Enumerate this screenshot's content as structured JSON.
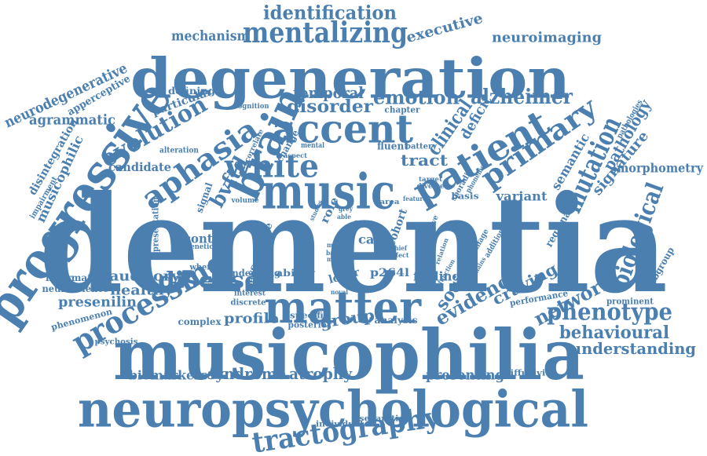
{
  "accent_color": "#4a7fb0",
  "words": [
    {
      "text": "dementia"
    },
    {
      "text": "degeneration"
    },
    {
      "text": "musicophilia"
    },
    {
      "text": "neuropsychological"
    },
    {
      "text": "matter"
    },
    {
      "text": "progressive"
    },
    {
      "text": "music"
    },
    {
      "text": "brain"
    },
    {
      "text": "accent"
    },
    {
      "text": "patient"
    },
    {
      "text": "white"
    },
    {
      "text": "aphasia"
    },
    {
      "text": "mentalizing"
    },
    {
      "text": "evolution"
    },
    {
      "text": "primary"
    },
    {
      "text": "processing"
    },
    {
      "text": "tractography"
    },
    {
      "text": "identification"
    },
    {
      "text": "disease"
    },
    {
      "text": "mutation"
    },
    {
      "text": "biological"
    },
    {
      "text": "phenotype"
    },
    {
      "text": "network"
    },
    {
      "text": "evidence"
    },
    {
      "text": "alzheimer"
    },
    {
      "text": "disorder"
    },
    {
      "text": "emotion"
    },
    {
      "text": "temporal"
    },
    {
      "text": "bvftd"
    },
    {
      "text": "craving"
    },
    {
      "text": "social"
    },
    {
      "text": "clinical"
    },
    {
      "text": "neurodegenerative"
    },
    {
      "text": "agrammatic"
    },
    {
      "text": "mechanism"
    },
    {
      "text": "neuroimaging"
    },
    {
      "text": "executive"
    },
    {
      "text": "syndrome"
    },
    {
      "text": "behavioural"
    },
    {
      "text": "understanding"
    },
    {
      "text": "atrophy"
    },
    {
      "text": "biomarkers"
    },
    {
      "text": "presenting"
    },
    {
      "text": "profile"
    },
    {
      "text": "group"
    },
    {
      "text": "auditory"
    },
    {
      "text": "healthy"
    },
    {
      "text": "presenilin"
    },
    {
      "text": "tract"
    },
    {
      "text": "pathology"
    },
    {
      "text": "signature"
    },
    {
      "text": "deficit"
    },
    {
      "text": "semantic"
    },
    {
      "text": "morphometry"
    },
    {
      "text": "variant"
    },
    {
      "text": "musicophilic"
    },
    {
      "text": "disintegration"
    },
    {
      "text": "apperceptive"
    },
    {
      "text": "particular"
    },
    {
      "text": "defining"
    },
    {
      "text": "candidate"
    },
    {
      "text": "control"
    },
    {
      "text": "neural"
    },
    {
      "text": "case"
    },
    {
      "text": "finding"
    },
    {
      "text": "p264l"
    },
    {
      "text": "lobar"
    },
    {
      "text": "role"
    },
    {
      "text": "cohort"
    },
    {
      "text": "lobe"
    },
    {
      "text": "associative"
    },
    {
      "text": "underlying"
    },
    {
      "text": "ability"
    },
    {
      "text": "information"
    },
    {
      "text": "neuroscience"
    },
    {
      "text": "phenomenon"
    },
    {
      "text": "psychosis"
    },
    {
      "text": "complex"
    },
    {
      "text": "specific"
    },
    {
      "text": "posterior"
    },
    {
      "text": "analysis"
    },
    {
      "text": "regional"
    },
    {
      "text": "subgroup"
    },
    {
      "text": "prominent"
    },
    {
      "text": "performance"
    },
    {
      "text": "diffusivity"
    },
    {
      "text": "individual"
    },
    {
      "text": "separation"
    },
    {
      "text": "chapter"
    },
    {
      "text": "fluent"
    },
    {
      "text": "battery"
    },
    {
      "text": "change"
    },
    {
      "text": "mental"
    },
    {
      "text": "aspect"
    },
    {
      "text": "correlate"
    },
    {
      "text": "cognition"
    },
    {
      "text": "alteration"
    },
    {
      "text": "impairment"
    },
    {
      "text": "signal"
    },
    {
      "text": "volume"
    },
    {
      "text": "presentation"
    },
    {
      "text": "genetic"
    },
    {
      "text": "whereas"
    },
    {
      "text": "interest"
    },
    {
      "text": "discrete"
    },
    {
      "text": "sporadic"
    },
    {
      "text": "basis"
    },
    {
      "text": "phoneme"
    },
    {
      "text": "diverse"
    },
    {
      "text": "target"
    },
    {
      "text": "area"
    },
    {
      "text": "cognitive"
    },
    {
      "text": "function"
    },
    {
      "text": "damage"
    },
    {
      "text": "optimal"
    },
    {
      "text": "additional"
    },
    {
      "text": "pathologies"
    },
    {
      "text": "able"
    },
    {
      "text": "grey"
    },
    {
      "text": "voice"
    },
    {
      "text": "form"
    },
    {
      "text": "chief"
    },
    {
      "text": "effect"
    },
    {
      "text": "basic"
    },
    {
      "text": "more"
    },
    {
      "text": "most"
    },
    {
      "text": "novel"
    },
    {
      "text": "studies"
    },
    {
      "text": "feature"
    },
    {
      "text": "remains"
    },
    {
      "text": "relation"
    }
  ]
}
